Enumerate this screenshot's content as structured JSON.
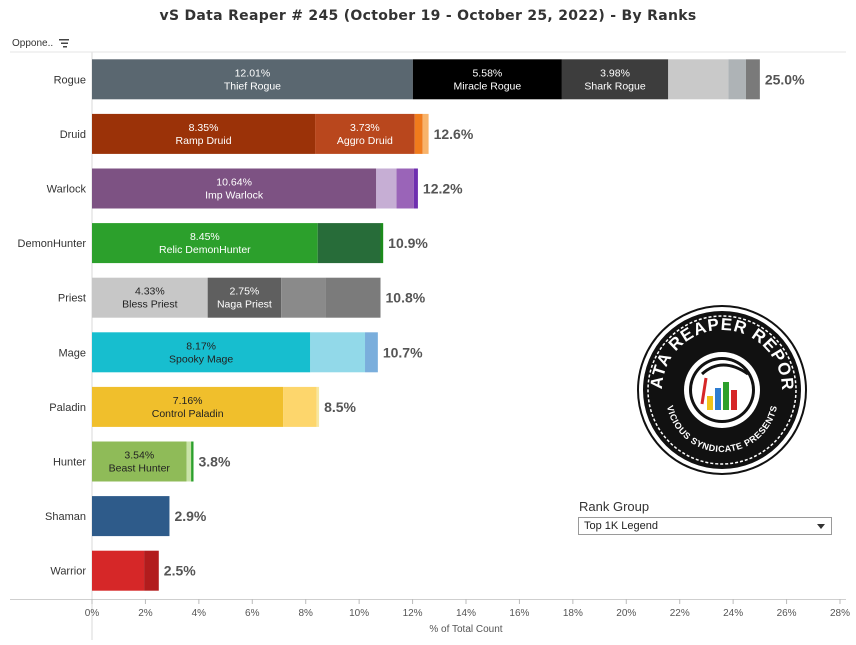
{
  "title": "vS Data Reaper #  245 (October 19 - October 25, 2022) - By Ranks",
  "row_header": "Oppone..",
  "sort_icon": "sort-descending-icon",
  "rank_group": {
    "label": "Rank Group",
    "selected": "Top 1K Legend",
    "arrow_icon": "chevron-down-icon"
  },
  "logo": {
    "top_text": "DATA REAPER REPORT",
    "bottom_text": "VICIOUS SYNDICATE PRESENTS",
    "icon": "data-reaper-logo-icon"
  },
  "chart_data": {
    "type": "bar",
    "orientation": "horizontal",
    "stacked": true,
    "xlabel": "% of Total Count",
    "xlim": [
      0,
      28
    ],
    "xticks": [
      0,
      2,
      4,
      6,
      8,
      10,
      12,
      14,
      16,
      18,
      20,
      22,
      24,
      26,
      28
    ],
    "xtick_labels": [
      "0%",
      "2%",
      "4%",
      "6%",
      "8%",
      "10%",
      "12%",
      "14%",
      "16%",
      "18%",
      "20%",
      "22%",
      "24%",
      "26%",
      "28%"
    ],
    "categories": [
      "Rogue",
      "Druid",
      "Warlock",
      "DemonHunter",
      "Priest",
      "Mage",
      "Paladin",
      "Hunter",
      "Shaman",
      "Warrior"
    ],
    "totals": [
      25.0,
      12.6,
      12.2,
      10.9,
      10.8,
      10.7,
      8.5,
      3.8,
      2.9,
      2.5
    ],
    "total_labels": [
      "25.0%",
      "12.6%",
      "12.2%",
      "10.9%",
      "10.8%",
      "10.7%",
      "8.5%",
      "3.8%",
      "2.9%",
      "2.5%"
    ],
    "rows": [
      {
        "category": "Rogue",
        "segments": [
          {
            "value": 12.01,
            "color": "#5a6770",
            "pct": "12.01%",
            "name": "Thief Rogue",
            "text_color": "#ffffff"
          },
          {
            "value": 5.58,
            "color": "#000000",
            "pct": "5.58%",
            "name": "Miracle Rogue",
            "text_color": "#ffffff"
          },
          {
            "value": 3.98,
            "color": "#3d3d3d",
            "pct": "3.98%",
            "name": "Shark Rogue",
            "text_color": "#ffffff"
          },
          {
            "value": 2.25,
            "color": "#c9c9c9"
          },
          {
            "value": 0.66,
            "color": "#aeb3b6"
          },
          {
            "value": 0.52,
            "color": "#7a7a7a"
          }
        ]
      },
      {
        "category": "Druid",
        "segments": [
          {
            "value": 8.35,
            "color": "#9b3208",
            "pct": "8.35%",
            "name": "Ramp Druid",
            "text_color": "#ffffff"
          },
          {
            "value": 3.73,
            "color": "#b9471d",
            "pct": "3.73%",
            "name": "Aggro Druid",
            "text_color": "#ffffff"
          },
          {
            "value": 0.3,
            "color": "#f07b1c"
          },
          {
            "value": 0.22,
            "color": "#f8b36a"
          }
        ]
      },
      {
        "category": "Warlock",
        "segments": [
          {
            "value": 10.64,
            "color": "#7d5283",
            "pct": "10.64%",
            "name": "Imp Warlock",
            "text_color": "#ffffff"
          },
          {
            "value": 0.76,
            "color": "#c6aed4"
          },
          {
            "value": 0.65,
            "color": "#9a64b8"
          },
          {
            "value": 0.15,
            "color": "#6f2fb0"
          }
        ]
      },
      {
        "category": "DemonHunter",
        "segments": [
          {
            "value": 8.45,
            "color": "#2ca02c",
            "pct": "8.45%",
            "name": "Relic DemonHunter",
            "text_color": "#ffffff"
          },
          {
            "value": 2.35,
            "color": "#276c39"
          },
          {
            "value": 0.1,
            "color": "#1b8c1b"
          }
        ]
      },
      {
        "category": "Priest",
        "segments": [
          {
            "value": 4.33,
            "color": "#c7c7c7",
            "pct": "4.33%",
            "name": "Bless Priest",
            "text_color": "#222222"
          },
          {
            "value": 2.75,
            "color": "#5f5f5f",
            "pct": "2.75%",
            "name": "Naga Priest",
            "text_color": "#ffffff"
          },
          {
            "value": 1.65,
            "color": "#8a8a8a"
          },
          {
            "value": 2.07,
            "color": "#7b7b7b"
          }
        ]
      },
      {
        "category": "Mage",
        "segments": [
          {
            "value": 8.17,
            "color": "#17becf",
            "pct": "8.17%",
            "name": "Spooky Mage",
            "text_color": "#222222"
          },
          {
            "value": 2.05,
            "color": "#92d9e9"
          },
          {
            "value": 0.48,
            "color": "#7aaedc"
          }
        ]
      },
      {
        "category": "Paladin",
        "segments": [
          {
            "value": 7.16,
            "color": "#f0bf2c",
            "pct": "7.16%",
            "name": "Control Paladin",
            "text_color": "#222222"
          },
          {
            "value": 1.25,
            "color": "#fdd66c"
          },
          {
            "value": 0.09,
            "color": "#f7e7a0"
          }
        ]
      },
      {
        "category": "Hunter",
        "segments": [
          {
            "value": 3.54,
            "color": "#8fbb58",
            "pct": "3.54%",
            "name": "Beast Hunter",
            "text_color": "#222222"
          },
          {
            "value": 0.17,
            "color": "#c9e3a8"
          },
          {
            "value": 0.09,
            "color": "#2ca02c"
          }
        ]
      },
      {
        "category": "Shaman",
        "segments": [
          {
            "value": 2.9,
            "color": "#2e5b8a"
          }
        ]
      },
      {
        "category": "Warrior",
        "segments": [
          {
            "value": 1.95,
            "color": "#d62728"
          },
          {
            "value": 0.55,
            "color": "#b21c1d"
          }
        ]
      }
    ]
  }
}
